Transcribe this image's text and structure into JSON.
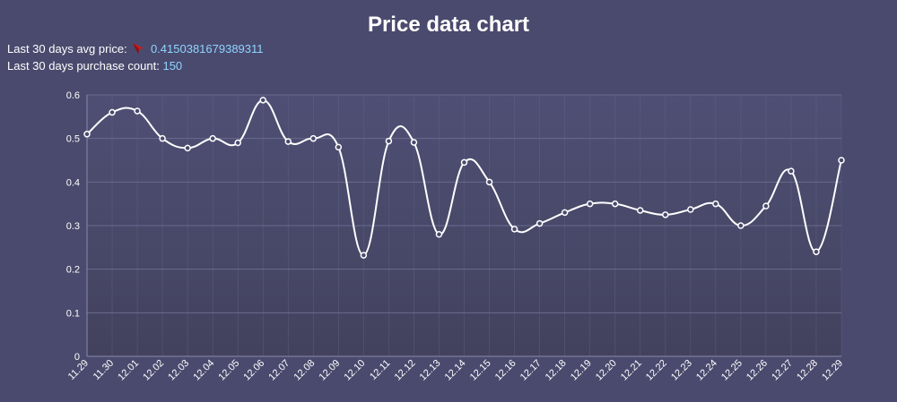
{
  "header": {
    "avg_label": "Last 30 days avg price:",
    "avg_value": "0.4150381679389311",
    "avg_trend_icon": "down-arrow-icon",
    "count_label": "Last 30 days purchase count:",
    "count_value": "150"
  },
  "colors": {
    "background": "#4a4a6e",
    "plot_top": "#4f4f75",
    "plot_bottom": "#42425e",
    "line": "#ffffff",
    "grid": "#6a6a8e",
    "value_text": "#8fd4ff",
    "trend_icon": "#cc1a1a"
  },
  "chart_data": {
    "type": "line",
    "title": "Price data chart",
    "xlabel": "",
    "ylabel": "",
    "ylim": [
      0,
      0.6
    ],
    "yticks": [
      "0",
      "0.1",
      "0.2",
      "0.3",
      "0.4",
      "0.5",
      "0.6"
    ],
    "grid": true,
    "legend": "none",
    "categories": [
      "11.29",
      "11.30",
      "12.01",
      "12.02",
      "12.03",
      "12.04",
      "12.05",
      "12.06",
      "12.07",
      "12.08",
      "12.09",
      "12.10",
      "12.11",
      "12.12",
      "12.13",
      "12.14",
      "12.15",
      "12.16",
      "12.17",
      "12.18",
      "12.19",
      "12.20",
      "12.21",
      "12.22",
      "12.23",
      "12.24",
      "12.25",
      "12.26",
      "12.27",
      "12.28",
      "12.29"
    ],
    "series": [
      {
        "values": [
          0.51,
          0.56,
          0.563,
          0.5,
          0.478,
          0.5,
          0.49,
          0.588,
          0.493,
          0.5,
          0.48,
          0.232,
          0.494,
          0.491,
          0.28,
          0.445,
          0.4,
          0.292,
          0.305,
          0.33,
          0.35,
          0.35,
          0.335,
          0.325,
          0.337,
          0.35,
          0.3,
          0.345,
          0.425,
          0.24,
          0.45
        ]
      }
    ]
  }
}
